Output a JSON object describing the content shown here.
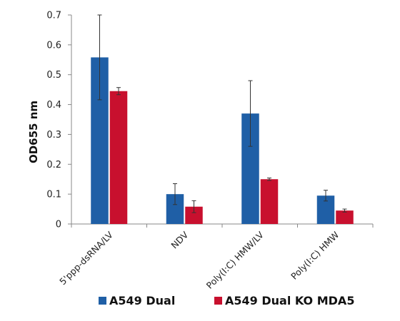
{
  "chart_data": {
    "type": "bar",
    "ylabel": "OD655 nm",
    "xlabel": "",
    "title": "",
    "ylim": [
      0,
      0.7
    ],
    "yticks": [
      0,
      0.1,
      0.2,
      0.3,
      0.4,
      0.5,
      0.6,
      0.7
    ],
    "ytick_labels": [
      "0",
      "0.1",
      "0.2",
      "0.3",
      "0.4",
      "0.5",
      "0.6",
      "0.7"
    ],
    "categories": [
      "5'ppp-dsRNA/LV",
      "NDV",
      "Poly(I:C) HMW/LV",
      "Poly(I:C) HMW"
    ],
    "series": [
      {
        "name": "A549 Dual",
        "color": "#1f5fa6",
        "values": [
          0.558,
          0.1,
          0.37,
          0.095
        ],
        "error": [
          0.142,
          0.035,
          0.11,
          0.018
        ]
      },
      {
        "name": "A549 Dual KO MDA5",
        "color": "#c8102e",
        "values": [
          0.445,
          0.058,
          0.15,
          0.045
        ],
        "error": [
          0.012,
          0.02,
          0.004,
          0.005
        ]
      }
    ],
    "grid": false,
    "legend": "bottom"
  }
}
